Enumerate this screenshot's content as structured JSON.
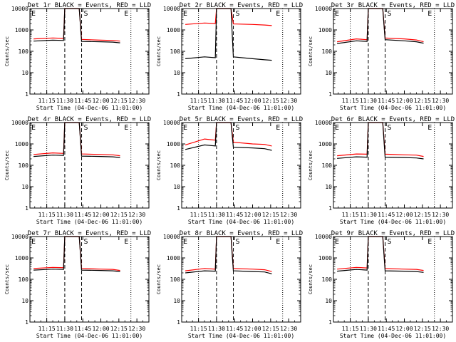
{
  "figure": {
    "panel_x_label": "Start Time (04-Dec-06 11:01:00)",
    "panel_y_label": "Counts/sec"
  },
  "chart_data": [
    {
      "type": "line",
      "title": "Det 1r BLACK = Events, RED = LLD",
      "xlabel": "Start Time (04-Dec-06 11:01:00)",
      "ylabel": "Counts/sec",
      "yscale": "log",
      "ylim": [
        1,
        10000
      ],
      "xlim": [
        "11:01",
        "12:40"
      ],
      "x_tick_labels": [
        "11:15",
        "11:30",
        "11:45",
        "12:00",
        "12:15",
        "12:30"
      ],
      "y_tick_labels": [
        "1",
        "10",
        "100",
        "1000",
        "10000"
      ],
      "region_markers": [
        "E",
        "S",
        "E"
      ],
      "x": [
        "11:04",
        "11:20",
        "11:29",
        "11:30",
        "11:33",
        "11:37",
        "11:40",
        "11:42",
        "11:44",
        "12:00",
        "12:10",
        "12:16"
      ],
      "series": [
        {
          "color": "#ff0000",
          "values": [
            380,
            420,
            400,
            10000,
            10000,
            10000,
            10000,
            10000,
            360,
            330,
            320,
            300
          ]
        },
        {
          "color": "#000000",
          "values": [
            300,
            330,
            320,
            10000,
            10000,
            10000,
            10000,
            10000,
            290,
            280,
            270,
            250
          ]
        }
      ]
    },
    {
      "type": "line",
      "title": "Det 2r BLACK = Events, RED = LLD",
      "xlabel": "Start Time (04-Dec-06 11:01:00)",
      "ylabel": "Counts/sec",
      "yscale": "log",
      "ylim": [
        1,
        10000
      ],
      "xlim": [
        "11:01",
        "12:40"
      ],
      "x_tick_labels": [
        "11:15",
        "11:30",
        "11:45",
        "12:00",
        "12:15",
        "12:30"
      ],
      "y_tick_labels": [
        "1",
        "10",
        "100",
        "1000",
        "10000"
      ],
      "region_markers": [
        "E",
        "S",
        "E"
      ],
      "x": [
        "11:04",
        "11:20",
        "11:29",
        "11:30",
        "11:33",
        "11:37",
        "11:40",
        "11:42",
        "11:44",
        "12:00",
        "12:10",
        "12:16"
      ],
      "series": [
        {
          "color": "#ff0000",
          "values": [
            1800,
            2100,
            2000,
            10000,
            10000,
            10000,
            10000,
            10000,
            1900,
            1800,
            1700,
            1600
          ]
        },
        {
          "color": "#000000",
          "values": [
            45,
            55,
            50,
            10000,
            10000,
            10000,
            10000,
            10000,
            55,
            45,
            40,
            38
          ]
        }
      ]
    },
    {
      "type": "line",
      "title": "Det 3r BLACK = Events, RED = LLD",
      "xlabel": "Start Time (04-Dec-06 11:01:00)",
      "ylabel": "Counts/sec",
      "yscale": "log",
      "ylim": [
        1,
        10000
      ],
      "xlim": [
        "11:01",
        "12:40"
      ],
      "x_tick_labels": [
        "11:15",
        "11:30",
        "11:45",
        "12:00",
        "12:15",
        "12:30"
      ],
      "y_tick_labels": [
        "1",
        "10",
        "100",
        "1000",
        "10000"
      ],
      "region_markers": [
        "E",
        "S",
        "E"
      ],
      "x": [
        "11:04",
        "11:20",
        "11:29",
        "11:30",
        "11:33",
        "11:37",
        "11:40",
        "11:42",
        "11:44",
        "12:00",
        "12:10",
        "12:16"
      ],
      "series": [
        {
          "color": "#ff0000",
          "values": [
            280,
            380,
            350,
            10000,
            10000,
            10000,
            10000,
            10000,
            420,
            380,
            340,
            280
          ]
        },
        {
          "color": "#000000",
          "values": [
            230,
            310,
            290,
            10000,
            10000,
            10000,
            10000,
            10000,
            350,
            310,
            280,
            240
          ]
        }
      ]
    },
    {
      "type": "line",
      "title": "Det 4r BLACK = Events, RED = LLD",
      "xlabel": "Start Time (04-Dec-06 11:01:00)",
      "ylabel": "Counts/sec",
      "yscale": "log",
      "ylim": [
        1,
        10000
      ],
      "xlim": [
        "11:01",
        "12:40"
      ],
      "x_tick_labels": [
        "11:15",
        "11:30",
        "11:45",
        "12:00",
        "12:15",
        "12:30"
      ],
      "y_tick_labels": [
        "1",
        "10",
        "100",
        "1000",
        "10000"
      ],
      "region_markers": [
        "E",
        "S",
        "E"
      ],
      "x": [
        "11:04",
        "11:20",
        "11:29",
        "11:30",
        "11:33",
        "11:37",
        "11:40",
        "11:42",
        "11:44",
        "12:00",
        "12:10",
        "12:16"
      ],
      "series": [
        {
          "color": "#ff0000",
          "values": [
            320,
            380,
            360,
            10000,
            10000,
            10000,
            10000,
            10000,
            340,
            320,
            310,
            280
          ]
        },
        {
          "color": "#000000",
          "values": [
            260,
            300,
            290,
            10000,
            10000,
            10000,
            10000,
            10000,
            270,
            260,
            250,
            230
          ]
        }
      ]
    },
    {
      "type": "line",
      "title": "Det 5r BLACK = Events, RED = LLD",
      "xlabel": "Start Time (04-Dec-06 11:01:00)",
      "ylabel": "Counts/sec",
      "yscale": "log",
      "ylim": [
        1,
        10000
      ],
      "xlim": [
        "11:01",
        "12:40"
      ],
      "x_tick_labels": [
        "11:15",
        "11:30",
        "11:45",
        "12:00",
        "12:15",
        "12:30"
      ],
      "y_tick_labels": [
        "1",
        "10",
        "100",
        "1000",
        "10000"
      ],
      "region_markers": [
        "E",
        "S",
        "E"
      ],
      "x": [
        "11:04",
        "11:20",
        "11:29",
        "11:30",
        "11:33",
        "11:37",
        "11:40",
        "11:42",
        "11:44",
        "12:00",
        "12:10",
        "12:16"
      ],
      "series": [
        {
          "color": "#ff0000",
          "values": [
            900,
            1700,
            1500,
            10000,
            10000,
            10000,
            10000,
            10000,
            1200,
            1000,
            950,
            800
          ]
        },
        {
          "color": "#000000",
          "values": [
            550,
            900,
            800,
            10000,
            10000,
            10000,
            10000,
            10000,
            700,
            650,
            600,
            500
          ]
        }
      ]
    },
    {
      "type": "line",
      "title": "Det 6r BLACK = Events, RED = LLD",
      "xlabel": "Start Time (04-Dec-06 11:01:00)",
      "ylabel": "Counts/sec",
      "yscale": "log",
      "ylim": [
        1,
        10000
      ],
      "xlim": [
        "11:01",
        "12:40"
      ],
      "x_tick_labels": [
        "11:15",
        "11:30",
        "11:45",
        "12:00",
        "12:15",
        "12:30"
      ],
      "y_tick_labels": [
        "1",
        "10",
        "100",
        "1000",
        "10000"
      ],
      "region_markers": [
        "E",
        "S",
        "E"
      ],
      "x": [
        "11:04",
        "11:20",
        "11:29",
        "11:30",
        "11:33",
        "11:37",
        "11:40",
        "11:42",
        "11:44",
        "12:00",
        "12:10",
        "12:16"
      ],
      "series": [
        {
          "color": "#ff0000",
          "values": [
            280,
            340,
            330,
            10000,
            10000,
            10000,
            10000,
            10000,
            330,
            310,
            300,
            260
          ]
        },
        {
          "color": "#000000",
          "values": [
            210,
            250,
            240,
            10000,
            10000,
            10000,
            10000,
            10000,
            240,
            230,
            220,
            200
          ]
        }
      ]
    },
    {
      "type": "line",
      "title": "Det 7r BLACK = Events, RED = LLD",
      "xlabel": "Start Time (04-Dec-06 11:01:00)",
      "ylabel": "Counts/sec",
      "yscale": "log",
      "ylim": [
        1,
        10000
      ],
      "xlim": [
        "11:01",
        "12:40"
      ],
      "x_tick_labels": [
        "11:15",
        "11:30",
        "11:45",
        "12:00",
        "12:15",
        "12:30"
      ],
      "y_tick_labels": [
        "1",
        "10",
        "100",
        "1000",
        "10000"
      ],
      "region_markers": [
        "E",
        "S",
        "E"
      ],
      "x": [
        "11:04",
        "11:20",
        "11:29",
        "11:30",
        "11:33",
        "11:37",
        "11:40",
        "11:42",
        "11:44",
        "12:00",
        "12:10",
        "12:16"
      ],
      "series": [
        {
          "color": "#ff0000",
          "values": [
            320,
            360,
            350,
            10000,
            10000,
            10000,
            10000,
            10000,
            320,
            300,
            290,
            260
          ]
        },
        {
          "color": "#000000",
          "values": [
            270,
            300,
            290,
            10000,
            10000,
            10000,
            10000,
            10000,
            270,
            260,
            250,
            230
          ]
        }
      ]
    },
    {
      "type": "line",
      "title": "Det 8r BLACK = Events, RED = LLD",
      "xlabel": "Start Time (04-Dec-06 11:01:00)",
      "ylabel": "Counts/sec",
      "yscale": "log",
      "ylim": [
        1,
        10000
      ],
      "xlim": [
        "11:01",
        "12:40"
      ],
      "x_tick_labels": [
        "11:15",
        "11:30",
        "11:45",
        "12:00",
        "12:15",
        "12:30"
      ],
      "y_tick_labels": [
        "1",
        "10",
        "100",
        "1000",
        "10000"
      ],
      "region_markers": [
        "E",
        "S",
        "E"
      ],
      "x": [
        "11:04",
        "11:20",
        "11:29",
        "11:30",
        "11:33",
        "11:37",
        "11:40",
        "11:42",
        "11:44",
        "12:00",
        "12:10",
        "12:16"
      ],
      "series": [
        {
          "color": "#ff0000",
          "values": [
            250,
            320,
            300,
            10000,
            10000,
            10000,
            10000,
            10000,
            320,
            300,
            280,
            230
          ]
        },
        {
          "color": "#000000",
          "values": [
            200,
            250,
            240,
            10000,
            10000,
            10000,
            10000,
            10000,
            250,
            230,
            220,
            180
          ]
        }
      ]
    },
    {
      "type": "line",
      "title": "Det 9r BLACK = Events, RED = LLD",
      "xlabel": "Start Time (04-Dec-06 11:01:00)",
      "ylabel": "Counts/sec",
      "yscale": "log",
      "ylim": [
        1,
        10000
      ],
      "xlim": [
        "11:01",
        "12:40"
      ],
      "x_tick_labels": [
        "11:15",
        "11:30",
        "11:45",
        "12:00",
        "12:15",
        "12:30"
      ],
      "y_tick_labels": [
        "1",
        "10",
        "100",
        "1000",
        "10000"
      ],
      "region_markers": [
        "E",
        "S",
        "E"
      ],
      "x": [
        "11:04",
        "11:20",
        "11:29",
        "11:30",
        "11:33",
        "11:37",
        "11:40",
        "11:42",
        "11:44",
        "12:00",
        "12:10",
        "12:16"
      ],
      "series": [
        {
          "color": "#ff0000",
          "values": [
            300,
            360,
            340,
            10000,
            10000,
            10000,
            10000,
            10000,
            320,
            300,
            290,
            260
          ]
        },
        {
          "color": "#000000",
          "values": [
            240,
            290,
            270,
            10000,
            10000,
            10000,
            10000,
            10000,
            250,
            240,
            230,
            210
          ]
        }
      ]
    }
  ]
}
